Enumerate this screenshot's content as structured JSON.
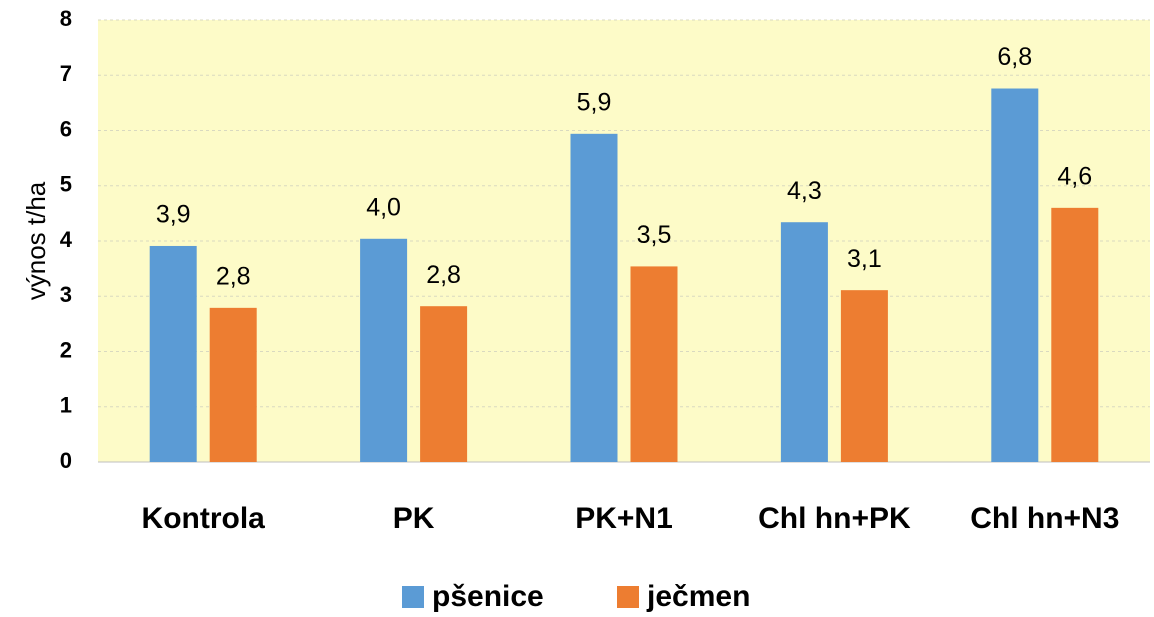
{
  "chart_data": {
    "type": "bar",
    "y_label": "výnos t/ha",
    "categories": [
      "Kontrola",
      "PK",
      "PK+N1",
      "Chl hn+PK",
      "Chl hn+N3"
    ],
    "series": [
      {
        "name": "pšenice",
        "color": "#5b9bd5",
        "values": [
          3.91,
          4.04,
          5.94,
          4.34,
          6.76
        ],
        "value_labels": [
          "3,9",
          "4,0",
          "5,9",
          "4,3",
          "6,8"
        ]
      },
      {
        "name": "ječmen",
        "color": "#ed7d31",
        "values": [
          2.79,
          2.82,
          3.54,
          3.11,
          4.6
        ],
        "value_labels": [
          "2,8",
          "2,8",
          "3,5",
          "3,1",
          "4,6"
        ]
      }
    ],
    "ylim": [
      0,
      8
    ],
    "yticks": [
      0,
      1,
      2,
      3,
      4,
      5,
      6,
      7,
      8
    ],
    "grid": true,
    "plot_background": "#fdfbc8",
    "legend": "bottom"
  }
}
